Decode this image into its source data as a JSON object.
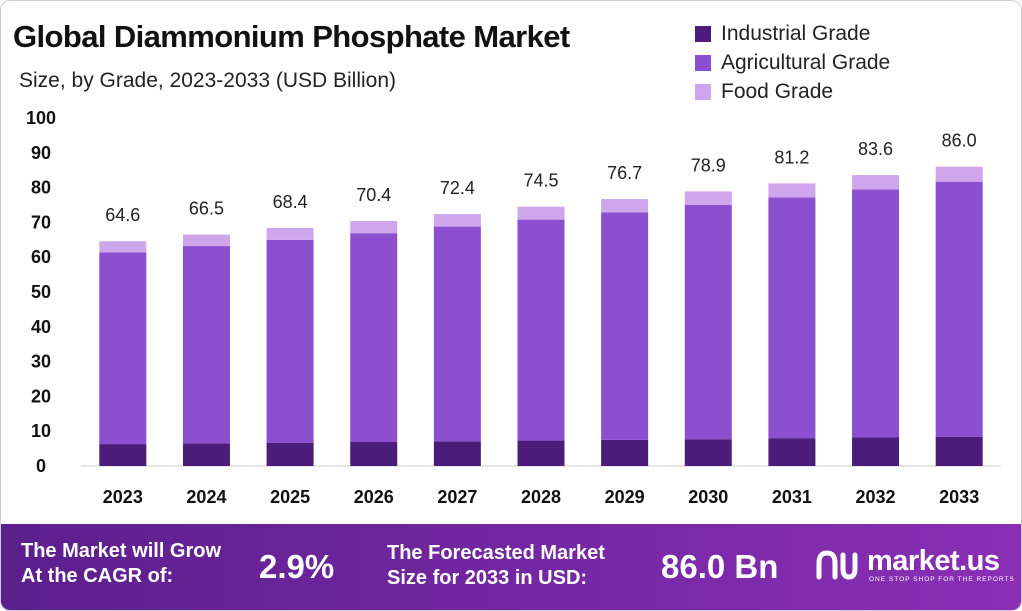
{
  "header": {
    "title": "Global Diammonium Phosphate Market",
    "subtitle": "Size, by Grade, 2023-2033 (USD Billion)"
  },
  "legend": [
    {
      "label": "Industrial Grade",
      "color": "#4b1c7a"
    },
    {
      "label": "Agricultural Grade",
      "color": "#8c4fd0"
    },
    {
      "label": "Food Grade",
      "color": "#cfa6ec"
    }
  ],
  "chart_data": {
    "type": "bar",
    "stacked": true,
    "title": "Global Diammonium Phosphate Market",
    "subtitle": "Size, by Grade, 2023-2033 (USD Billion)",
    "categories": [
      "2023",
      "2024",
      "2025",
      "2026",
      "2027",
      "2028",
      "2029",
      "2030",
      "2031",
      "2032",
      "2033"
    ],
    "series": [
      {
        "name": "Industrial Grade",
        "color": "#4b1c7a",
        "values": [
          6.3,
          6.5,
          6.7,
          6.9,
          7.1,
          7.3,
          7.5,
          7.7,
          8.0,
          8.2,
          8.4
        ]
      },
      {
        "name": "Agricultural Grade",
        "color": "#8c4fd0",
        "values": [
          55.1,
          56.7,
          58.3,
          60.0,
          61.7,
          63.5,
          65.4,
          67.3,
          69.2,
          71.3,
          73.3
        ]
      },
      {
        "name": "Food Grade",
        "color": "#cfa6ec",
        "values": [
          3.2,
          3.3,
          3.4,
          3.5,
          3.6,
          3.7,
          3.8,
          3.9,
          4.0,
          4.1,
          4.3
        ]
      }
    ],
    "totals": [
      "64.6",
      "66.5",
      "68.4",
      "70.4",
      "72.4",
      "74.5",
      "76.7",
      "78.9",
      "81.2",
      "83.6",
      "86.0"
    ],
    "yticks": [
      0,
      10,
      20,
      30,
      40,
      50,
      60,
      70,
      80,
      90,
      100
    ],
    "ylim": [
      0,
      100
    ],
    "xlabel": "",
    "ylabel": "",
    "grid": false,
    "legend_position": "top-right"
  },
  "footer": {
    "cagr_label_line1": "The Market will Grow",
    "cagr_label_line2": "At the CAGR of:",
    "cagr_value": "2.9%",
    "forecast_label_line1": "The Forecasted Market",
    "forecast_label_line2": "Size for 2033 in USD:",
    "forecast_value": "86.0 Bn",
    "brand_name": "market.us",
    "brand_tagline": "ONE STOP SHOP FOR THE REPORTS",
    "colors": {
      "start": "#5b1f8c",
      "end": "#8a2fb6"
    }
  }
}
